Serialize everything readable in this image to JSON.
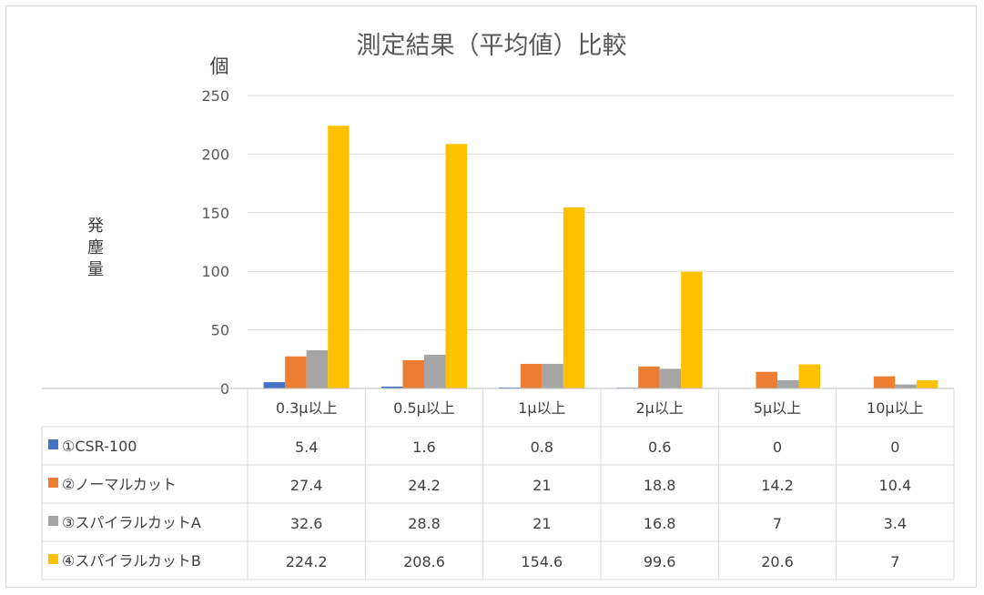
{
  "chart_data": {
    "type": "bar",
    "title": "測定結果（平均値）比較",
    "unit": "個",
    "ylabel": "発塵量",
    "ylim": [
      0,
      250
    ],
    "yticks": [
      0,
      50,
      100,
      150,
      200,
      250
    ],
    "grid": true,
    "legend": "data-table",
    "categories": [
      "0.3μ以上",
      "0.5μ以上",
      "1μ以上",
      "2μ以上",
      "5μ以上",
      "10μ以上"
    ],
    "series": [
      {
        "name": "①CSR-100",
        "color": "#4472c4",
        "values": [
          5.4,
          1.6,
          0.8,
          0.6,
          0,
          0
        ]
      },
      {
        "name": "②ノーマルカット",
        "color": "#ed7d31",
        "values": [
          27.4,
          24.2,
          21,
          18.8,
          14.2,
          10.4
        ]
      },
      {
        "name": "③スパイラルカットA",
        "color": "#a5a5a5",
        "values": [
          32.6,
          28.8,
          21,
          16.8,
          7,
          3.4
        ]
      },
      {
        "name": "④スパイラルカットB",
        "color": "#ffc000",
        "values": [
          224.2,
          208.6,
          154.6,
          99.6,
          20.6,
          7
        ]
      }
    ]
  }
}
